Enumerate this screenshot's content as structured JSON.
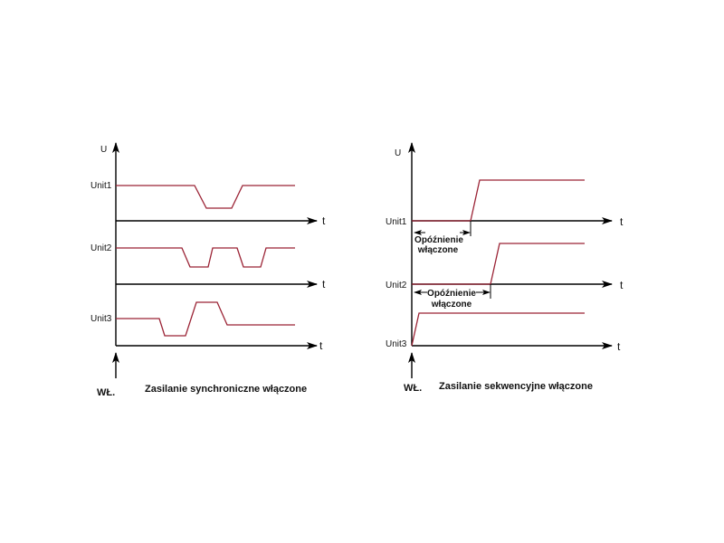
{
  "colors": {
    "signal": "#9b2335",
    "axis": "#000000"
  },
  "left": {
    "y_axis_label": "U",
    "time_label": "t",
    "units": [
      "Unit1",
      "Unit2",
      "Unit3"
    ],
    "power_on_label": "WŁ.",
    "caption": "Zasilanie synchroniczne włączone"
  },
  "right": {
    "y_axis_label": "U",
    "time_label": "t",
    "units": [
      "Unit1",
      "Unit2",
      "Unit3"
    ],
    "delay_label_line1": "Opóźnienie",
    "delay_label_line2": "włączone",
    "power_on_label": "WŁ.",
    "caption": "Zasilanie sekwencyjne włączone"
  }
}
